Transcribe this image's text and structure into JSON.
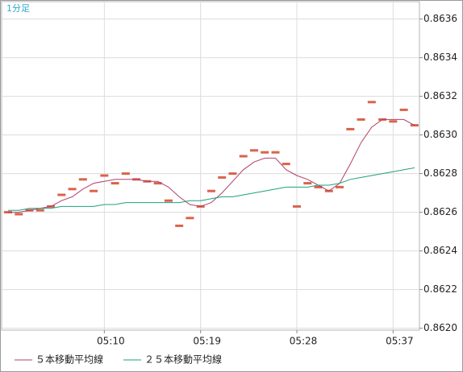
{
  "chart_data": {
    "type": "line",
    "title": "1分足",
    "categories": [
      null,
      null,
      null,
      null,
      null,
      null,
      null,
      null,
      null,
      "05:10",
      null,
      null,
      null,
      null,
      null,
      null,
      null,
      null,
      "05:19",
      null,
      null,
      null,
      null,
      null,
      null,
      null,
      null,
      "05:28",
      null,
      null,
      null,
      null,
      null,
      null,
      null,
      null,
      "05:37",
      null,
      null
    ],
    "ylim": [
      0.86199,
      0.86369
    ],
    "yticks": [
      {
        "value": 0.862,
        "label": "0.8620"
      },
      0.8622,
      0.8624,
      0.8626,
      0.8628,
      {
        "value": 0.863,
        "label": "0.8630"
      },
      0.8632,
      0.8634,
      0.8636
    ],
    "grid": true,
    "series": [
      {
        "marker": "dash",
        "color": "#d9634a",
        "values": [
          0.8626,
          0.86259,
          0.86261,
          0.86261,
          0.86263,
          0.86269,
          0.86272,
          0.86277,
          0.86271,
          0.86279,
          0.86275,
          0.8628,
          0.86277,
          0.86276,
          0.86275,
          0.86266,
          0.86253,
          0.86257,
          0.86263,
          0.86271,
          0.86278,
          0.8628,
          0.86289,
          0.86292,
          0.86291,
          0.86291,
          0.86285,
          0.86263,
          0.86275,
          0.86273,
          0.86271,
          0.86273,
          0.86303,
          0.86308,
          0.86317,
          0.86308,
          0.86307,
          0.86313,
          0.86305
        ]
      },
      {
        "name": "５本移動平均線",
        "color": "#b0406a",
        "values": [
          0.8626,
          0.8626,
          0.86261,
          0.86262,
          0.86263,
          0.86266,
          0.86268,
          0.86272,
          0.86275,
          0.86276,
          0.86277,
          0.86277,
          0.86277,
          0.86276,
          0.86276,
          0.86273,
          0.86268,
          0.86264,
          0.86263,
          0.86265,
          0.8627,
          0.86276,
          0.86282,
          0.86286,
          0.86288,
          0.86288,
          0.86282,
          0.86279,
          0.86277,
          0.86274,
          0.86271,
          0.86275,
          0.86285,
          0.86296,
          0.86304,
          0.86308,
          0.86308,
          0.86308,
          0.86305
        ]
      },
      {
        "name": "２５本移動平均線",
        "color": "#1fa07e",
        "values": [
          0.86261,
          0.86261,
          0.86262,
          0.86262,
          0.86262,
          0.86263,
          0.86263,
          0.86263,
          0.86263,
          0.86264,
          0.86264,
          0.86265,
          0.86265,
          0.86265,
          0.86265,
          0.86265,
          0.86265,
          0.86266,
          0.86266,
          0.86267,
          0.86268,
          0.86268,
          0.86269,
          0.8627,
          0.86271,
          0.86272,
          0.86273,
          0.86273,
          0.86273,
          0.86274,
          0.86274,
          0.86275,
          0.86277,
          0.86278,
          0.86279,
          0.8628,
          0.86281,
          0.86282,
          0.86283
        ]
      }
    ]
  }
}
